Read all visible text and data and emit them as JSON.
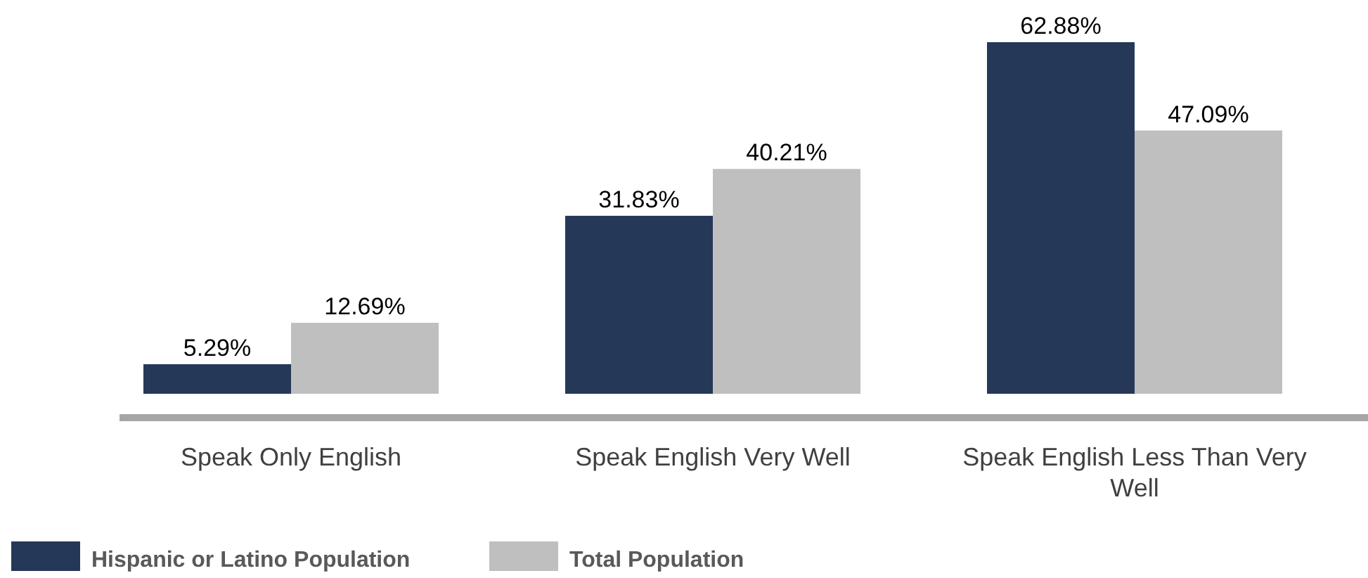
{
  "chart_data": {
    "type": "bar",
    "categories": [
      "Speak Only English",
      "Speak English Very Well",
      "Speak English Less Than Very Well"
    ],
    "series": [
      {
        "name": "Hispanic or Latino Population",
        "color": "#253858",
        "values": [
          5.29,
          31.83,
          62.88
        ],
        "value_labels": [
          "5.29%",
          "31.83%",
          "62.88%"
        ]
      },
      {
        "name": "Total Population",
        "color": "#bfbfbf",
        "values": [
          12.69,
          40.21,
          47.09
        ],
        "value_labels": [
          "12.69%",
          "40.21%",
          "47.09%"
        ]
      }
    ],
    "legend": "bottom"
  }
}
